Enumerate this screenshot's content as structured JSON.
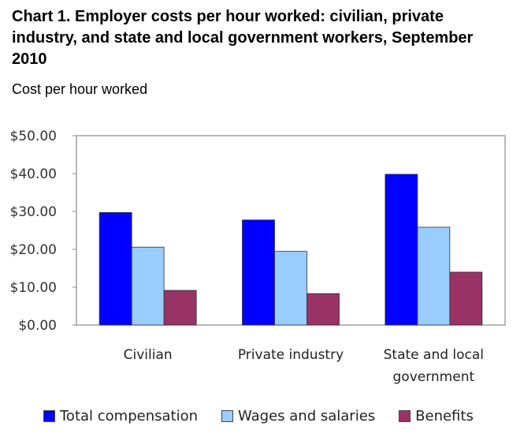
{
  "title": "Chart 1. Employer costs per hour worked: civilian, private industry, and state and local government workers, September 2010",
  "subtitle": "Cost per hour worked",
  "chart_data": {
    "type": "bar",
    "categories": [
      "Civilian",
      "Private industry",
      "State and local government"
    ],
    "series": [
      {
        "name": "Total compensation",
        "values": [
          29.72,
          27.75,
          39.81
        ],
        "color": "#0000ff"
      },
      {
        "name": "Wages and salaries",
        "values": [
          20.57,
          19.45,
          25.84
        ],
        "color": "#99ccff"
      },
      {
        "name": "Benefits",
        "values": [
          9.15,
          8.31,
          13.97
        ],
        "color": "#993366"
      }
    ],
    "yticks": [
      "$0.00",
      "$10.00",
      "$20.00",
      "$30.00",
      "$40.00",
      "$50.00"
    ],
    "ylim": [
      0,
      50
    ],
    "grid": false,
    "legend": "bottom"
  }
}
